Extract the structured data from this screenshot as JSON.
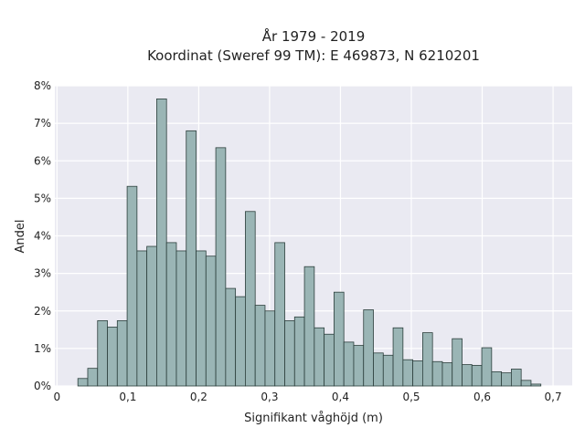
{
  "chart_data": {
    "type": "bar",
    "title": "År 1979 - 2019",
    "subtitle": "Koordinat (Sweref 99 TM): E 469873, N 6210201",
    "xlabel": "Signifikant våghöjd (m)",
    "ylabel": "Andel",
    "xlim": [
      -0.003,
      0.727
    ],
    "ylim": [
      0,
      8
    ],
    "grid": true,
    "x_tick_values": [
      0,
      0.1,
      0.2,
      0.3,
      0.4,
      0.5,
      0.6,
      0.7
    ],
    "x_tick_labels": [
      "0",
      "0,1",
      "0,2",
      "0,3",
      "0,4",
      "0,5",
      "0,6",
      "0,7"
    ],
    "y_tick_values": [
      0,
      1,
      2,
      3,
      4,
      5,
      6,
      7,
      8
    ],
    "y_tick_labels": [
      "0%",
      "1%",
      "2%",
      "3%",
      "4%",
      "5%",
      "6%",
      "7%",
      "8%"
    ],
    "bar_width": 0.0139,
    "bins": [
      0.0295,
      0.0434,
      0.0573,
      0.0712,
      0.0851,
      0.099,
      0.1129,
      0.1268,
      0.1407,
      0.1546,
      0.1685,
      0.1824,
      0.1963,
      0.2102,
      0.2241,
      0.238,
      0.2519,
      0.2658,
      0.2797,
      0.2936,
      0.3075,
      0.3214,
      0.3353,
      0.3492,
      0.3631,
      0.377,
      0.3909,
      0.4048,
      0.4187,
      0.4326,
      0.4465,
      0.4604,
      0.4743,
      0.4882,
      0.5021,
      0.516,
      0.5299,
      0.5438,
      0.5577,
      0.5716,
      0.5855,
      0.5994,
      0.6133,
      0.6272,
      0.6411,
      0.655,
      0.6689
    ],
    "values": [
      0.2,
      0.47,
      1.74,
      1.57,
      1.74,
      5.32,
      3.6,
      3.72,
      7.65,
      3.82,
      3.6,
      6.8,
      3.6,
      3.46,
      6.35,
      2.6,
      2.38,
      4.65,
      2.15,
      2.0,
      3.82,
      1.74,
      1.84,
      3.18,
      1.55,
      1.38,
      2.5,
      1.17,
      1.08,
      2.03,
      0.88,
      0.82,
      1.55,
      0.7,
      0.67,
      1.42,
      0.65,
      0.62,
      1.26,
      0.57,
      0.55,
      1.02,
      0.38,
      0.35,
      0.45,
      0.15,
      0.05
    ],
    "bar_color": "#9ab5b5",
    "bar_edge_color": "#2c3f3c",
    "background_color": "#eaeaf2",
    "grid_color": "#ffffff"
  }
}
